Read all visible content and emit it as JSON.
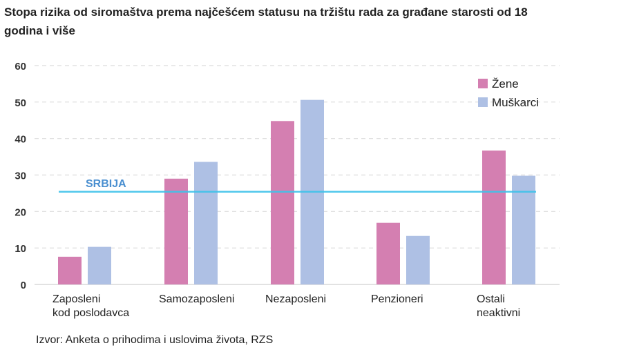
{
  "chart_data": {
    "type": "bar",
    "title": "Stopa rizika od siromaštva prema najčešćem statusu na tržištu rada za građane starosti od 18 godina i više",
    "categories": [
      [
        "Zaposleni",
        "kod poslodavca"
      ],
      [
        "Samozaposleni"
      ],
      [
        "Nezaposleni"
      ],
      [
        "Penzioneri"
      ],
      [
        "Ostali",
        "neaktivni"
      ]
    ],
    "series": [
      {
        "name": "Žene",
        "color": "#d47fb1",
        "values": [
          7.6,
          29.0,
          44.8,
          16.9,
          36.7
        ]
      },
      {
        "name": "Muškarci",
        "color": "#aec0e4",
        "values": [
          10.3,
          33.6,
          50.6,
          13.3,
          29.8
        ]
      }
    ],
    "reference_line": {
      "label": "SRBIJA",
      "value": 25.4,
      "color": "#3ec3ea"
    },
    "yticks": [
      "0",
      "10",
      "20",
      "30",
      "40",
      "50",
      "60"
    ],
    "ylim": [
      0,
      60
    ],
    "xlabel": "",
    "ylabel": "",
    "grid": true,
    "legend": "top-right",
    "source": "Izvor: Anketa o prihodima i uslovima života, RZS"
  }
}
